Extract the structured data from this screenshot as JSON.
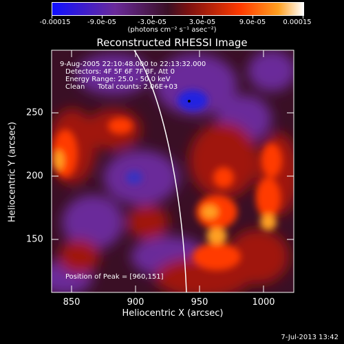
{
  "colorbar": {
    "tick_labels": [
      "-0.00015",
      "-9.0e-05",
      "-3.0e-05",
      "3.0e-05",
      "9.0e-05",
      "0.00015"
    ],
    "units": "(photons cm⁻² s⁻¹ asec⁻²)",
    "colors": [
      "#1010ff",
      "#6a2a9a",
      "#3a0f25",
      "#7a1010",
      "#ff3a00",
      "#ffa020",
      "#ffffff"
    ]
  },
  "title": "Reconstructed RHESSI Image",
  "annotations": {
    "time_range": "9-Aug-2005 22:10:48.000 to 22:13:32.000",
    "detectors": "Detectors: 4F 5F 6F 7F 8F, Att 0",
    "energy": "Energy Range: 25.0 - 50.0 keV",
    "method": "Clean",
    "counts": "Total counts: 2.06E+03",
    "peak": "Position of Peak = [960,151]"
  },
  "xaxis": {
    "label": "Heliocentric X (arcsec)",
    "ticks": [
      "850",
      "900",
      "950",
      "1000"
    ]
  },
  "yaxis": {
    "label": "Heliocentric Y (arcsec)",
    "ticks": [
      "150",
      "200",
      "250"
    ]
  },
  "timestamp": "7-Jul-2013 13:42"
}
